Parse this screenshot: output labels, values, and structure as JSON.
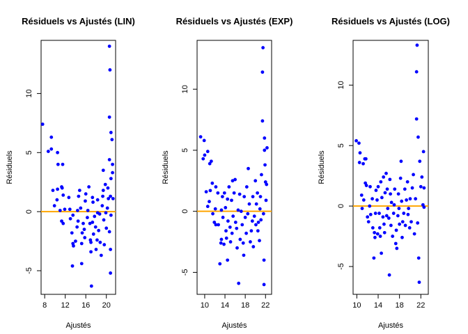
{
  "colors": {
    "points": "#0000ff",
    "ref_line": "#ffa500",
    "axes": "#000000"
  },
  "chart_data": [
    {
      "type": "scatter",
      "title": "Résiduels vs Ajustés (LIN)",
      "xlabel": "Ajustés",
      "ylabel": "Résiduels",
      "xlim": [
        7.3,
        21.8
      ],
      "ylim": [
        -7.0,
        14.5
      ],
      "xticks": [
        8,
        12,
        16,
        20
      ],
      "yticks": [
        -5,
        0,
        5,
        10
      ],
      "reference_line": 0,
      "points": [
        [
          7.6,
          7.4
        ],
        [
          8.7,
          5.1
        ],
        [
          9.3,
          5.3
        ],
        [
          9.3,
          6.3
        ],
        [
          10.5,
          5.0
        ],
        [
          10.6,
          4.0
        ],
        [
          11.5,
          4.0
        ],
        [
          9.6,
          1.8
        ],
        [
          9.9,
          0.5
        ],
        [
          10.4,
          1.0
        ],
        [
          10.5,
          1.9
        ],
        [
          11.0,
          0.1
        ],
        [
          11.3,
          2.1
        ],
        [
          11.4,
          2.0
        ],
        [
          11.6,
          1.4
        ],
        [
          11.3,
          -0.8
        ],
        [
          11.6,
          -1.0
        ],
        [
          11.9,
          0.2
        ],
        [
          12.7,
          1.2
        ],
        [
          12.9,
          0.2
        ],
        [
          13.0,
          -0.6
        ],
        [
          13.3,
          -1.8
        ],
        [
          13.5,
          -0.3
        ],
        [
          13.5,
          -2.7
        ],
        [
          13.6,
          -2.9
        ],
        [
          13.4,
          -4.6
        ],
        [
          14.0,
          -2.5
        ],
        [
          14.3,
          -1.3
        ],
        [
          14.5,
          -0.8
        ],
        [
          14.4,
          0.1
        ],
        [
          14.6,
          1.3
        ],
        [
          14.8,
          1.8
        ],
        [
          15.0,
          0.3
        ],
        [
          15.2,
          -2.7
        ],
        [
          15.2,
          -4.4
        ],
        [
          15.3,
          -1.8
        ],
        [
          15.5,
          -1.0
        ],
        [
          15.7,
          -1.5
        ],
        [
          15.8,
          -2.2
        ],
        [
          15.9,
          0.9
        ],
        [
          16.0,
          1.5
        ],
        [
          16.3,
          -0.5
        ],
        [
          16.4,
          0.1
        ],
        [
          16.6,
          2.1
        ],
        [
          16.8,
          -1.0
        ],
        [
          16.9,
          -2.4
        ],
        [
          17.0,
          -2.6
        ],
        [
          17.1,
          -6.3
        ],
        [
          17.0,
          -3.4
        ],
        [
          17.3,
          1.2
        ],
        [
          17.3,
          -0.9
        ],
        [
          17.4,
          0.8
        ],
        [
          17.5,
          -1.9
        ],
        [
          17.7,
          -0.4
        ],
        [
          17.9,
          -1.3
        ],
        [
          18.0,
          -3.2
        ],
        [
          18.2,
          -2.4
        ],
        [
          18.3,
          1.0
        ],
        [
          18.3,
          -0.1
        ],
        [
          18.5,
          -1.6
        ],
        [
          18.7,
          -0.2
        ],
        [
          18.8,
          -2.6
        ],
        [
          19.0,
          -3.7
        ],
        [
          19.2,
          0.5
        ],
        [
          19.3,
          1.3
        ],
        [
          19.4,
          1.8
        ],
        [
          19.5,
          -0.7
        ],
        [
          19.4,
          3.5
        ],
        [
          19.6,
          -2.8
        ],
        [
          19.8,
          2.3
        ],
        [
          19.9,
          -0.1
        ],
        [
          20.0,
          -1.4
        ],
        [
          20.2,
          0.3
        ],
        [
          20.3,
          2.0
        ],
        [
          20.4,
          1.1
        ],
        [
          20.6,
          4.4
        ],
        [
          20.6,
          -1.7
        ],
        [
          20.8,
          -3.2
        ],
        [
          20.8,
          -5.2
        ],
        [
          20.8,
          1.3
        ],
        [
          20.9,
          2.8
        ],
        [
          20.9,
          -0.3
        ],
        [
          20.6,
          8.0
        ],
        [
          20.7,
          12.0
        ],
        [
          20.6,
          14.0
        ],
        [
          20.9,
          6.7
        ],
        [
          21.1,
          6.1
        ],
        [
          21.2,
          4.0
        ],
        [
          21.2,
          3.3
        ],
        [
          21.3,
          1.1
        ]
      ]
    },
    {
      "type": "scatter",
      "title": "Résiduels vs Ajustés (EXP)",
      "xlabel": "Ajustés",
      "ylabel": "Résiduels",
      "xlim": [
        8.5,
        23.2
      ],
      "ylim": [
        -6.8,
        14.0
      ],
      "xticks": [
        10,
        14,
        18,
        22
      ],
      "yticks": [
        -5,
        0,
        5,
        10
      ],
      "reference_line": 0,
      "points": [
        [
          9.2,
          6.1
        ],
        [
          9.9,
          5.8
        ],
        [
          10.0,
          4.6
        ],
        [
          9.7,
          4.3
        ],
        [
          10.6,
          4.9
        ],
        [
          11.0,
          3.9
        ],
        [
          11.3,
          4.1
        ],
        [
          10.3,
          1.6
        ],
        [
          10.6,
          0.4
        ],
        [
          10.9,
          0.8
        ],
        [
          11.1,
          1.7
        ],
        [
          11.5,
          2.3
        ],
        [
          11.6,
          -0.2
        ],
        [
          11.9,
          -0.9
        ],
        [
          12.1,
          0.2
        ],
        [
          12.2,
          2.0
        ],
        [
          12.2,
          -1.1
        ],
        [
          12.6,
          1.5
        ],
        [
          12.7,
          -1.1
        ],
        [
          13.0,
          -4.3
        ],
        [
          13.2,
          -2.6
        ],
        [
          13.3,
          -2.3
        ],
        [
          13.3,
          0.1
        ],
        [
          13.5,
          1.2
        ],
        [
          13.6,
          -0.5
        ],
        [
          13.8,
          -2.7
        ],
        [
          13.9,
          1.5
        ],
        [
          14.1,
          0.3
        ],
        [
          14.2,
          -1.6
        ],
        [
          14.3,
          -2.2
        ],
        [
          14.5,
          -4.0
        ],
        [
          14.5,
          1.0
        ],
        [
          14.6,
          -0.8
        ],
        [
          14.8,
          2.0
        ],
        [
          15.0,
          -1.3
        ],
        [
          15.1,
          -2.5
        ],
        [
          15.3,
          0.9
        ],
        [
          15.4,
          -1.8
        ],
        [
          15.5,
          2.5
        ],
        [
          15.6,
          -0.4
        ],
        [
          15.8,
          1.5
        ],
        [
          16.0,
          2.6
        ],
        [
          16.1,
          -0.9
        ],
        [
          16.3,
          -1.4
        ],
        [
          16.4,
          -3.0
        ],
        [
          16.6,
          0.1
        ],
        [
          16.7,
          -5.9
        ],
        [
          16.9,
          1.4
        ],
        [
          17.0,
          -2.3
        ],
        [
          17.2,
          0.0
        ],
        [
          17.4,
          -1.1
        ],
        [
          17.6,
          -2.6
        ],
        [
          17.7,
          -3.6
        ],
        [
          17.8,
          1.2
        ],
        [
          18.0,
          -0.5
        ],
        [
          18.2,
          -1.8
        ],
        [
          18.3,
          2.0
        ],
        [
          18.5,
          -0.2
        ],
        [
          18.6,
          3.5
        ],
        [
          18.8,
          0.6
        ],
        [
          19.0,
          -2.5
        ],
        [
          19.2,
          -1.6
        ],
        [
          19.4,
          -0.8
        ],
        [
          19.5,
          1.2
        ],
        [
          19.6,
          -2.9
        ],
        [
          19.8,
          -0.4
        ],
        [
          20.0,
          2.5
        ],
        [
          20.1,
          -1.1
        ],
        [
          20.2,
          0.6
        ],
        [
          20.4,
          1.5
        ],
        [
          20.5,
          -1.6
        ],
        [
          20.6,
          -0.9
        ],
        [
          20.8,
          -2.4
        ],
        [
          20.9,
          0.2
        ],
        [
          21.0,
          1.2
        ],
        [
          21.1,
          -0.7
        ],
        [
          21.2,
          3.0
        ],
        [
          21.4,
          7.4
        ],
        [
          21.4,
          11.4
        ],
        [
          21.5,
          13.4
        ],
        [
          21.6,
          -0.2
        ],
        [
          21.7,
          -4.0
        ],
        [
          21.7,
          -6.0
        ],
        [
          21.8,
          5.0
        ],
        [
          21.8,
          6.0
        ],
        [
          21.9,
          3.8
        ],
        [
          22.0,
          2.4
        ],
        [
          22.1,
          0.9
        ],
        [
          22.2,
          2.2
        ],
        [
          22.3,
          5.2
        ]
      ]
    },
    {
      "type": "scatter",
      "title": "Résiduels vs Ajustés (LOG)",
      "xlabel": "Ajustés",
      "ylabel": "Résiduels",
      "xlim": [
        9.3,
        23.4
      ],
      "ylim": [
        -7.3,
        13.7
      ],
      "xticks": [
        10,
        14,
        18,
        22
      ],
      "yticks": [
        -5,
        0,
        5,
        10
      ],
      "reference_line": 0,
      "points": [
        [
          9.9,
          5.4
        ],
        [
          10.4,
          5.2
        ],
        [
          10.6,
          4.4
        ],
        [
          10.5,
          3.6
        ],
        [
          11.2,
          3.5
        ],
        [
          11.5,
          3.9
        ],
        [
          11.7,
          3.9
        ],
        [
          10.9,
          0.9
        ],
        [
          11.0,
          -0.2
        ],
        [
          11.3,
          0.5
        ],
        [
          11.6,
          1.9
        ],
        [
          11.8,
          1.7
        ],
        [
          12.0,
          -0.9
        ],
        [
          12.2,
          -1.3
        ],
        [
          12.4,
          0.0
        ],
        [
          12.5,
          1.6
        ],
        [
          12.6,
          -0.7
        ],
        [
          12.9,
          0.6
        ],
        [
          13.0,
          -1.8
        ],
        [
          13.2,
          -4.3
        ],
        [
          13.3,
          -2.2
        ],
        [
          13.4,
          -2.6
        ],
        [
          13.5,
          -0.6
        ],
        [
          13.6,
          1.3
        ],
        [
          13.8,
          0.5
        ],
        [
          13.9,
          -2.3
        ],
        [
          14.0,
          1.6
        ],
        [
          14.2,
          -0.6
        ],
        [
          14.3,
          -1.8
        ],
        [
          14.4,
          -2.5
        ],
        [
          14.5,
          2.0
        ],
        [
          14.6,
          -3.9
        ],
        [
          14.7,
          0.7
        ],
        [
          14.9,
          -0.9
        ],
        [
          15.0,
          2.4
        ],
        [
          15.1,
          -1.5
        ],
        [
          15.2,
          -2.2
        ],
        [
          15.3,
          1.1
        ],
        [
          15.5,
          2.7
        ],
        [
          15.6,
          -0.8
        ],
        [
          15.7,
          1.4
        ],
        [
          15.8,
          -0.2
        ],
        [
          16.0,
          -1.0
        ],
        [
          16.1,
          -5.7
        ],
        [
          16.2,
          2.2
        ],
        [
          16.3,
          1.0
        ],
        [
          16.4,
          -1.6
        ],
        [
          16.5,
          0.3
        ],
        [
          16.7,
          -2.5
        ],
        [
          16.9,
          -0.6
        ],
        [
          17.0,
          0.1
        ],
        [
          17.1,
          1.4
        ],
        [
          17.3,
          -3.1
        ],
        [
          17.4,
          -2.0
        ],
        [
          17.5,
          -3.5
        ],
        [
          17.7,
          -0.8
        ],
        [
          17.8,
          1.0
        ],
        [
          17.9,
          -0.2
        ],
        [
          18.0,
          -1.5
        ],
        [
          18.2,
          2.3
        ],
        [
          18.3,
          3.7
        ],
        [
          18.4,
          0.4
        ],
        [
          18.5,
          -2.6
        ],
        [
          18.6,
          -1.3
        ],
        [
          18.8,
          -0.6
        ],
        [
          19.0,
          1.4
        ],
        [
          19.1,
          -1.6
        ],
        [
          19.3,
          0.5
        ],
        [
          19.5,
          2.0
        ],
        [
          19.6,
          -0.7
        ],
        [
          19.7,
          -0.2
        ],
        [
          19.9,
          -1.8
        ],
        [
          20.0,
          0.6
        ],
        [
          20.2,
          -1.3
        ],
        [
          20.4,
          1.5
        ],
        [
          20.6,
          2.6
        ],
        [
          20.8,
          -2.3
        ],
        [
          21.0,
          0.6
        ],
        [
          21.2,
          7.2
        ],
        [
          21.2,
          11.1
        ],
        [
          21.3,
          13.3
        ],
        [
          21.4,
          -1.4
        ],
        [
          21.5,
          5.7
        ],
        [
          21.6,
          -4.3
        ],
        [
          21.7,
          -6.3
        ],
        [
          21.8,
          3.7
        ],
        [
          22.0,
          1.6
        ],
        [
          22.2,
          2.4
        ],
        [
          22.4,
          0.1
        ],
        [
          22.5,
          4.5
        ],
        [
          22.6,
          1.5
        ],
        [
          22.6,
          -0.1
        ]
      ]
    }
  ]
}
